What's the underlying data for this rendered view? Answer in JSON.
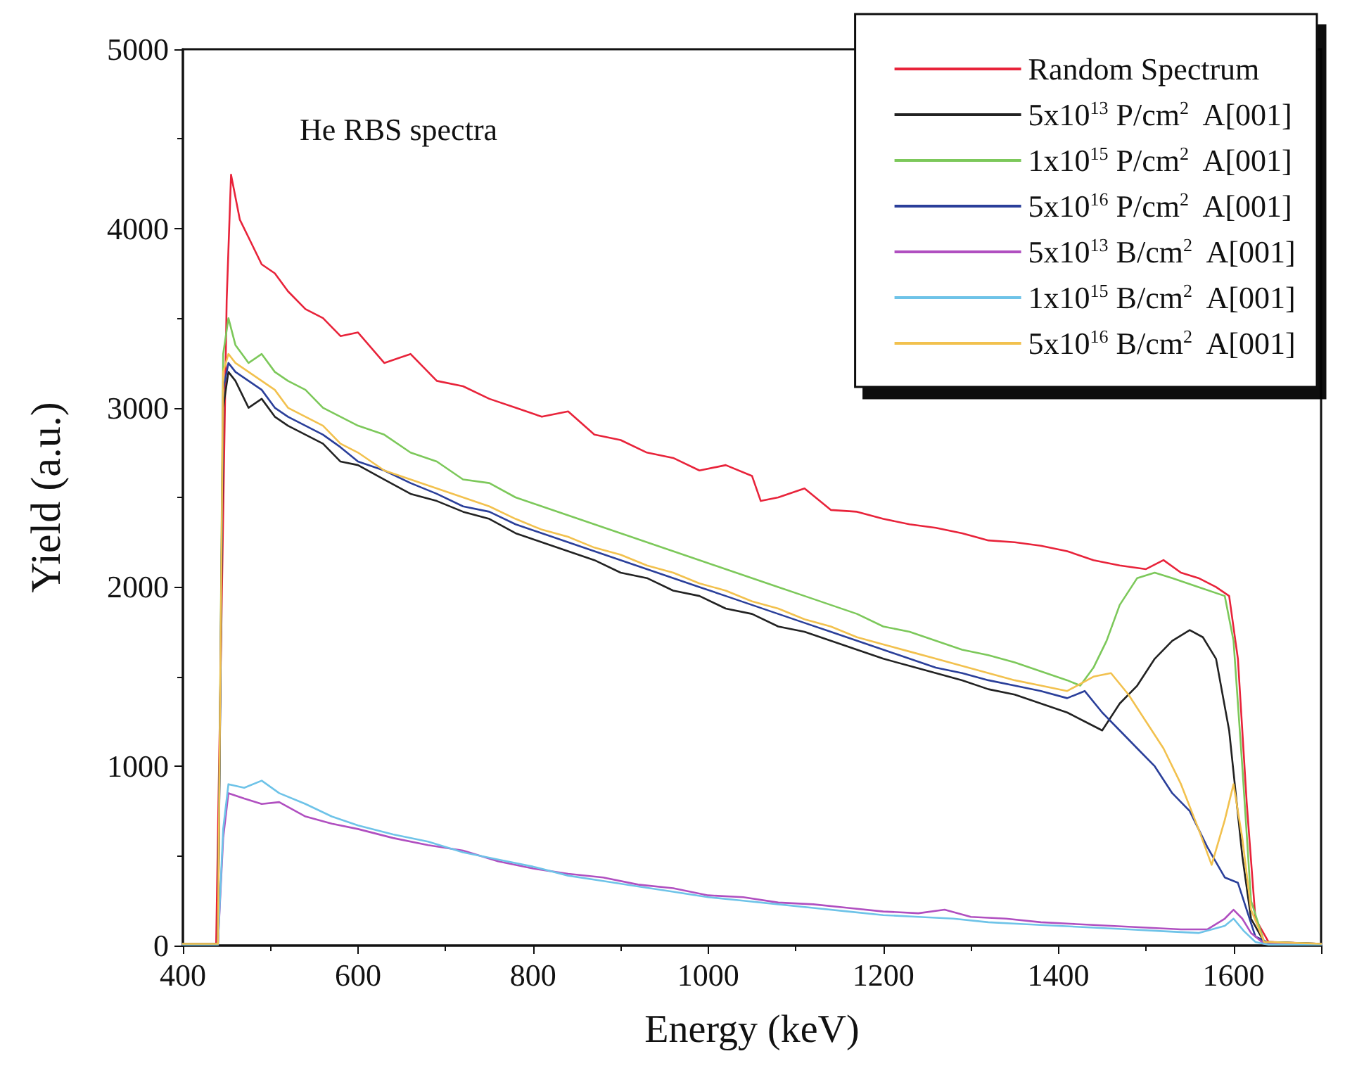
{
  "chart_data": {
    "type": "line",
    "title": "He RBS spectra",
    "xlabel": "Energy (keV)",
    "ylabel": "Yield (a.u.)",
    "xlim": [
      400,
      1700
    ],
    "ylim": [
      0,
      5000
    ],
    "xticks": [
      400,
      600,
      800,
      1000,
      1200,
      1400,
      1600
    ],
    "yticks": [
      0,
      1000,
      2000,
      3000,
      4000,
      5000
    ],
    "grid": false,
    "legend": "top right",
    "marker": "none",
    "line_style": "solid",
    "series": [
      {
        "name": "Random Spectrum",
        "color": "#e8233a",
        "x": [
          400,
          438,
          450,
          455,
          465,
          475,
          490,
          505,
          520,
          540,
          560,
          580,
          600,
          630,
          660,
          690,
          720,
          750,
          780,
          810,
          840,
          870,
          900,
          930,
          960,
          990,
          1020,
          1050,
          1060,
          1080,
          1110,
          1140,
          1170,
          1200,
          1230,
          1260,
          1290,
          1320,
          1350,
          1380,
          1410,
          1440,
          1470,
          1500,
          1520,
          1540,
          1560,
          1580,
          1595,
          1605,
          1615,
          1625,
          1640,
          1700
        ],
        "values": [
          10,
          10,
          3600,
          4300,
          4050,
          3950,
          3800,
          3750,
          3650,
          3550,
          3500,
          3400,
          3420,
          3250,
          3300,
          3150,
          3120,
          3050,
          3000,
          2950,
          2980,
          2850,
          2820,
          2750,
          2720,
          2650,
          2680,
          2620,
          2480,
          2500,
          2550,
          2430,
          2420,
          2380,
          2350,
          2330,
          2300,
          2260,
          2250,
          2230,
          2200,
          2150,
          2120,
          2100,
          2150,
          2080,
          2050,
          2000,
          1950,
          1600,
          800,
          150,
          20,
          10
        ]
      },
      {
        "name": "5x10$^{13}$ P/cm$^{2}$  A[001]",
        "color": "#222222",
        "x": [
          400,
          440,
          446,
          452,
          460,
          475,
          490,
          505,
          520,
          540,
          560,
          580,
          600,
          630,
          660,
          690,
          720,
          750,
          780,
          810,
          840,
          870,
          900,
          930,
          960,
          990,
          1020,
          1050,
          1080,
          1110,
          1140,
          1170,
          1200,
          1230,
          1260,
          1290,
          1320,
          1350,
          1380,
          1410,
          1430,
          1450,
          1470,
          1490,
          1510,
          1530,
          1550,
          1565,
          1580,
          1595,
          1610,
          1620,
          1635,
          1700
        ],
        "values": [
          10,
          10,
          3000,
          3200,
          3150,
          3000,
          3050,
          2950,
          2900,
          2850,
          2800,
          2700,
          2680,
          2600,
          2520,
          2480,
          2420,
          2380,
          2300,
          2250,
          2200,
          2150,
          2080,
          2050,
          1980,
          1950,
          1880,
          1850,
          1780,
          1750,
          1700,
          1650,
          1600,
          1560,
          1520,
          1480,
          1430,
          1400,
          1350,
          1300,
          1250,
          1200,
          1350,
          1450,
          1600,
          1700,
          1760,
          1720,
          1600,
          1200,
          500,
          150,
          20,
          10
        ]
      },
      {
        "name": "1x10$^{15}$ P/cm$^{2}$  A[001]",
        "color": "#7cc85a",
        "x": [
          400,
          440,
          446,
          452,
          460,
          475,
          490,
          505,
          520,
          540,
          560,
          580,
          600,
          630,
          660,
          690,
          720,
          750,
          780,
          810,
          840,
          870,
          900,
          930,
          960,
          990,
          1020,
          1050,
          1080,
          1110,
          1140,
          1170,
          1200,
          1230,
          1260,
          1290,
          1320,
          1350,
          1380,
          1410,
          1425,
          1440,
          1455,
          1470,
          1490,
          1510,
          1530,
          1560,
          1590,
          1600,
          1610,
          1620,
          1635,
          1700
        ],
        "values": [
          10,
          10,
          3300,
          3500,
          3350,
          3250,
          3300,
          3200,
          3150,
          3100,
          3000,
          2950,
          2900,
          2850,
          2750,
          2700,
          2600,
          2580,
          2500,
          2450,
          2400,
          2350,
          2300,
          2250,
          2200,
          2150,
          2100,
          2050,
          2000,
          1950,
          1900,
          1850,
          1780,
          1750,
          1700,
          1650,
          1620,
          1580,
          1530,
          1480,
          1450,
          1550,
          1700,
          1900,
          2050,
          2080,
          2050,
          2000,
          1950,
          1700,
          1000,
          250,
          20,
          10
        ]
      },
      {
        "name": "5x10$^{16}$ P/cm$^{2}$  A[001]",
        "color": "#2a3f9a",
        "x": [
          400,
          440,
          446,
          452,
          460,
          475,
          490,
          505,
          520,
          540,
          560,
          580,
          600,
          630,
          660,
          690,
          720,
          750,
          780,
          810,
          840,
          870,
          900,
          930,
          960,
          990,
          1020,
          1050,
          1080,
          1110,
          1140,
          1170,
          1200,
          1230,
          1260,
          1290,
          1320,
          1350,
          1380,
          1410,
          1430,
          1450,
          1470,
          1490,
          1510,
          1530,
          1550,
          1570,
          1590,
          1605,
          1615,
          1625,
          1640,
          1700
        ],
        "values": [
          10,
          10,
          3100,
          3250,
          3200,
          3150,
          3100,
          3000,
          2950,
          2900,
          2850,
          2780,
          2700,
          2650,
          2580,
          2520,
          2450,
          2420,
          2350,
          2300,
          2250,
          2200,
          2150,
          2100,
          2050,
          2000,
          1950,
          1900,
          1850,
          1800,
          1750,
          1700,
          1650,
          1600,
          1550,
          1520,
          1480,
          1450,
          1420,
          1380,
          1420,
          1300,
          1200,
          1100,
          1000,
          850,
          750,
          550,
          380,
          350,
          200,
          50,
          15,
          10
        ]
      },
      {
        "name": "5x10$^{13}$ B/cm$^{2}$  A[001]",
        "color": "#b04fc0",
        "x": [
          400,
          440,
          446,
          452,
          470,
          490,
          510,
          540,
          570,
          600,
          640,
          680,
          720,
          760,
          800,
          840,
          880,
          920,
          960,
          1000,
          1040,
          1080,
          1120,
          1160,
          1200,
          1240,
          1270,
          1300,
          1340,
          1380,
          1420,
          1460,
          1500,
          1540,
          1570,
          1590,
          1600,
          1610,
          1620,
          1635,
          1700
        ],
        "values": [
          5,
          5,
          600,
          850,
          820,
          790,
          800,
          720,
          680,
          650,
          600,
          560,
          530,
          470,
          430,
          400,
          380,
          340,
          320,
          280,
          270,
          240,
          230,
          210,
          190,
          180,
          200,
          160,
          150,
          130,
          120,
          110,
          100,
          90,
          90,
          150,
          200,
          150,
          70,
          10,
          5
        ]
      },
      {
        "name": "1x10$^{15}$ B/cm$^{2}$  A[001]",
        "color": "#6ec3e8",
        "x": [
          400,
          440,
          446,
          452,
          470,
          490,
          510,
          540,
          570,
          600,
          640,
          680,
          720,
          760,
          800,
          840,
          880,
          920,
          960,
          1000,
          1040,
          1080,
          1120,
          1160,
          1200,
          1240,
          1280,
          1320,
          1360,
          1400,
          1440,
          1480,
          1520,
          1560,
          1590,
          1600,
          1612,
          1625,
          1640,
          1700
        ],
        "values": [
          5,
          5,
          650,
          900,
          880,
          920,
          850,
          790,
          720,
          670,
          620,
          580,
          520,
          480,
          440,
          390,
          360,
          330,
          300,
          270,
          250,
          230,
          210,
          190,
          170,
          160,
          150,
          130,
          120,
          110,
          100,
          90,
          80,
          70,
          110,
          150,
          80,
          20,
          5,
          5
        ]
      },
      {
        "name": "5x10$^{16}$ B/cm$^{2}$  A[001]",
        "color": "#f2c14e",
        "x": [
          400,
          440,
          446,
          452,
          460,
          475,
          490,
          505,
          520,
          540,
          560,
          580,
          600,
          630,
          660,
          690,
          720,
          750,
          780,
          810,
          840,
          870,
          900,
          930,
          960,
          990,
          1020,
          1050,
          1080,
          1110,
          1140,
          1170,
          1200,
          1230,
          1260,
          1290,
          1320,
          1350,
          1380,
          1410,
          1440,
          1460,
          1480,
          1500,
          1520,
          1540,
          1560,
          1575,
          1590,
          1600,
          1610,
          1620,
          1635,
          1700
        ],
        "values": [
          10,
          10,
          3200,
          3300,
          3250,
          3200,
          3150,
          3100,
          3000,
          2950,
          2900,
          2800,
          2750,
          2650,
          2600,
          2550,
          2500,
          2450,
          2380,
          2320,
          2280,
          2220,
          2180,
          2120,
          2080,
          2020,
          1980,
          1920,
          1880,
          1820,
          1780,
          1720,
          1680,
          1640,
          1600,
          1560,
          1520,
          1480,
          1450,
          1420,
          1500,
          1520,
          1400,
          1250,
          1100,
          900,
          650,
          450,
          700,
          900,
          600,
          200,
          20,
          10
        ]
      }
    ]
  }
}
